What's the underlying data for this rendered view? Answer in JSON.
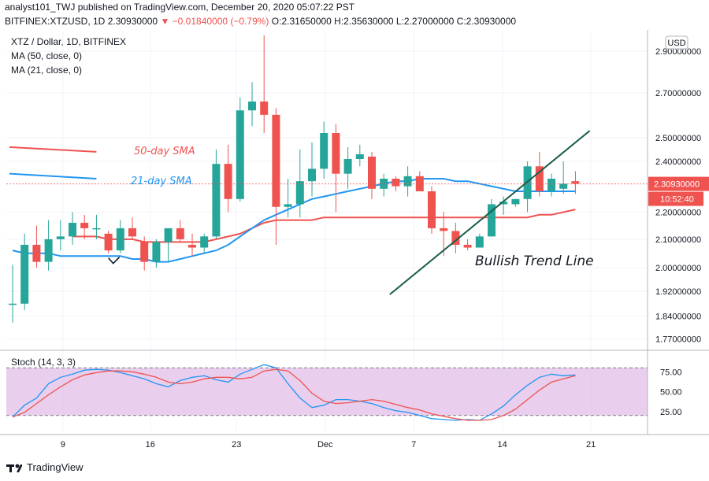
{
  "header": {
    "published_line": "analyst101_TWJ published on TradingView.com, December 20, 2020 05:07:22 PST",
    "symbol": "BITFINEX:XTZUSD, 1D",
    "last": "2.30930000",
    "change": "▼ −0.01840000 (−0.79%)",
    "ohlc_label": "O:2.31650000 H:2.35630000 L:2.27000000 C:2.30930000"
  },
  "legend": {
    "title": "XTZ / Dollar, 1D, BITFINEX",
    "ma50": "MA (50, close, 0)",
    "ma21": "MA (21, close, 0)"
  },
  "annotations": {
    "sma50": "50-day SMA",
    "sma21": "21-day SMA",
    "trend": "Bullish Trend Line"
  },
  "price_axis": {
    "currency": "USD",
    "ticks": [
      "2.90000000",
      "2.70000000",
      "2.50000000",
      "2.40000000",
      "2.20000000",
      "2.10000000",
      "2.00000000",
      "1.92000000",
      "1.84000000",
      "1.77000000"
    ],
    "last_price": "2.30930000",
    "countdown": "10:52:40"
  },
  "stoch": {
    "label": "Stoch (14, 3, 3)",
    "ticks": [
      "75.00",
      "50.00",
      "25.00"
    ]
  },
  "x_axis": {
    "ticks": [
      "9",
      "16",
      "23",
      "Dec",
      "7",
      "14",
      "21"
    ]
  },
  "footer": {
    "brand": "TradingView"
  },
  "colors": {
    "up": "#26a69a",
    "down": "#ef5350",
    "ma50": "#ef5350",
    "ma21": "#2196f3",
    "trend": "#1b5e4b",
    "stoch_k": "#2196f3",
    "stoch_d": "#ef5350",
    "stoch_fill": "#e1bee7"
  },
  "chart_data": {
    "type": "candlestick",
    "title": "XTZ / Dollar, 1D, BITFINEX",
    "price_scale": "log",
    "ylim": [
      1.74,
      3.0
    ],
    "x_tick_labels": [
      "9",
      "16",
      "23",
      "Dec",
      "7",
      "14",
      "21"
    ],
    "candles": [
      {
        "o": 1.88,
        "h": 2.01,
        "l": 1.82,
        "c": 1.88
      },
      {
        "o": 1.88,
        "h": 2.12,
        "l": 1.86,
        "c": 2.08
      },
      {
        "o": 2.08,
        "h": 2.15,
        "l": 2.0,
        "c": 2.02
      },
      {
        "o": 2.02,
        "h": 2.17,
        "l": 1.99,
        "c": 2.1
      },
      {
        "o": 2.1,
        "h": 2.17,
        "l": 2.06,
        "c": 2.11
      },
      {
        "o": 2.11,
        "h": 2.2,
        "l": 2.08,
        "c": 2.16
      },
      {
        "o": 2.16,
        "h": 2.19,
        "l": 2.1,
        "c": 2.14
      },
      {
        "o": 2.14,
        "h": 2.19,
        "l": 2.1,
        "c": 2.14
      },
      {
        "o": 2.12,
        "h": 2.13,
        "l": 2.05,
        "c": 2.06
      },
      {
        "o": 2.06,
        "h": 2.17,
        "l": 2.05,
        "c": 2.14
      },
      {
        "o": 2.14,
        "h": 2.18,
        "l": 2.1,
        "c": 2.11
      },
      {
        "o": 2.09,
        "h": 2.11,
        "l": 1.99,
        "c": 2.02
      },
      {
        "o": 2.02,
        "h": 2.1,
        "l": 2.0,
        "c": 2.09
      },
      {
        "o": 2.09,
        "h": 2.14,
        "l": 2.02,
        "c": 2.14
      },
      {
        "o": 2.14,
        "h": 2.17,
        "l": 2.09,
        "c": 2.1
      },
      {
        "o": 2.08,
        "h": 2.12,
        "l": 2.04,
        "c": 2.07
      },
      {
        "o": 2.07,
        "h": 2.12,
        "l": 2.05,
        "c": 2.11
      },
      {
        "o": 2.11,
        "h": 2.45,
        "l": 2.1,
        "c": 2.39
      },
      {
        "o": 2.39,
        "h": 2.47,
        "l": 2.2,
        "c": 2.25
      },
      {
        "o": 2.25,
        "h": 2.68,
        "l": 2.24,
        "c": 2.62
      },
      {
        "o": 2.62,
        "h": 2.75,
        "l": 2.55,
        "c": 2.66
      },
      {
        "o": 2.66,
        "h": 2.98,
        "l": 2.52,
        "c": 2.6
      },
      {
        "o": 2.6,
        "h": 2.63,
        "l": 2.08,
        "c": 2.22
      },
      {
        "o": 2.22,
        "h": 2.33,
        "l": 2.18,
        "c": 2.23
      },
      {
        "o": 2.23,
        "h": 2.45,
        "l": 2.18,
        "c": 2.32
      },
      {
        "o": 2.32,
        "h": 2.48,
        "l": 2.26,
        "c": 2.37
      },
      {
        "o": 2.37,
        "h": 2.57,
        "l": 2.33,
        "c": 2.52
      },
      {
        "o": 2.52,
        "h": 2.56,
        "l": 2.2,
        "c": 2.35
      },
      {
        "o": 2.35,
        "h": 2.46,
        "l": 2.29,
        "c": 2.41
      },
      {
        "o": 2.41,
        "h": 2.47,
        "l": 2.38,
        "c": 2.43
      },
      {
        "o": 2.42,
        "h": 2.44,
        "l": 2.25,
        "c": 2.29
      },
      {
        "o": 2.29,
        "h": 2.35,
        "l": 2.26,
        "c": 2.33
      },
      {
        "o": 2.33,
        "h": 2.34,
        "l": 2.28,
        "c": 2.3
      },
      {
        "o": 2.3,
        "h": 2.38,
        "l": 2.26,
        "c": 2.34
      },
      {
        "o": 2.34,
        "h": 2.36,
        "l": 2.28,
        "c": 2.28
      },
      {
        "o": 2.28,
        "h": 2.3,
        "l": 2.12,
        "c": 2.14
      },
      {
        "o": 2.14,
        "h": 2.2,
        "l": 2.04,
        "c": 2.13
      },
      {
        "o": 2.13,
        "h": 2.16,
        "l": 2.05,
        "c": 2.08
      },
      {
        "o": 2.08,
        "h": 2.1,
        "l": 2.06,
        "c": 2.07
      },
      {
        "o": 2.07,
        "h": 2.12,
        "l": 2.07,
        "c": 2.11
      },
      {
        "o": 2.11,
        "h": 2.25,
        "l": 2.11,
        "c": 2.23
      },
      {
        "o": 2.23,
        "h": 2.26,
        "l": 2.19,
        "c": 2.24
      },
      {
        "o": 2.23,
        "h": 2.25,
        "l": 2.22,
        "c": 2.25
      },
      {
        "o": 2.25,
        "h": 2.4,
        "l": 2.2,
        "c": 2.38
      },
      {
        "o": 2.38,
        "h": 2.44,
        "l": 2.26,
        "c": 2.28
      },
      {
        "o": 2.28,
        "h": 2.35,
        "l": 2.26,
        "c": 2.33
      },
      {
        "o": 2.29,
        "h": 2.4,
        "l": 2.27,
        "c": 2.31
      },
      {
        "o": 2.32,
        "h": 2.36,
        "l": 2.27,
        "c": 2.31
      }
    ],
    "ma50": {
      "name": "MA (50, close, 0)",
      "values": [
        null,
        null,
        null,
        null,
        null,
        2.11,
        2.11,
        2.11,
        2.1,
        2.1,
        2.1,
        2.09,
        2.09,
        2.09,
        2.09,
        2.09,
        2.09,
        2.1,
        2.11,
        2.12,
        2.14,
        2.16,
        2.17,
        2.17,
        2.17,
        2.17,
        2.18,
        2.18,
        2.18,
        2.18,
        2.18,
        2.18,
        2.18,
        2.18,
        2.18,
        2.18,
        2.18,
        2.18,
        2.18,
        2.18,
        2.18,
        2.18,
        2.18,
        2.18,
        2.19,
        2.19,
        2.2,
        2.21
      ]
    },
    "ma21": {
      "name": "MA (21, close, 0)",
      "values": [
        2.06,
        2.05,
        2.05,
        2.05,
        2.04,
        2.04,
        2.04,
        2.04,
        2.04,
        2.04,
        2.03,
        2.03,
        2.02,
        2.02,
        2.03,
        2.04,
        2.05,
        2.06,
        2.08,
        2.11,
        2.14,
        2.17,
        2.19,
        2.21,
        2.23,
        2.25,
        2.26,
        2.27,
        2.28,
        2.29,
        2.3,
        2.31,
        2.32,
        2.32,
        2.33,
        2.33,
        2.33,
        2.32,
        2.32,
        2.31,
        2.3,
        2.29,
        2.28,
        2.28,
        2.28,
        2.28,
        2.28,
        2.28
      ]
    },
    "old_ma_segments": [
      {
        "series": "ma50",
        "start_index": 0,
        "end_index": 7,
        "from": 2.46,
        "to": 2.44
      },
      {
        "series": "ma21",
        "start_index": 0,
        "end_index": 7,
        "from": 2.35,
        "to": 2.33
      }
    ],
    "trend_line": {
      "start_index": 31.5,
      "start_price": 1.91,
      "end_index": 48.2,
      "end_price": 2.53
    },
    "stochastic": {
      "name": "Stoch (14, 3, 3)",
      "ylim": [
        0,
        100
      ],
      "levels": [
        80,
        20
      ],
      "k": [
        18,
        33,
        42,
        60,
        68,
        72,
        77,
        78,
        77,
        74,
        70,
        66,
        60,
        56,
        64,
        68,
        70,
        65,
        62,
        72,
        78,
        84,
        80,
        60,
        42,
        30,
        33,
        40,
        40,
        38,
        35,
        30,
        26,
        24,
        20,
        16,
        15,
        14,
        15,
        14,
        22,
        32,
        46,
        58,
        68,
        72,
        70,
        71
      ],
      "d": [
        18,
        24,
        35,
        46,
        56,
        65,
        71,
        74,
        76,
        76,
        75,
        72,
        68,
        62,
        60,
        62,
        66,
        68,
        68,
        66,
        68,
        76,
        78,
        76,
        64,
        48,
        38,
        35,
        36,
        38,
        40,
        38,
        34,
        30,
        27,
        22,
        19,
        16,
        14,
        14,
        15,
        20,
        28,
        40,
        52,
        62,
        66,
        70
      ]
    }
  }
}
